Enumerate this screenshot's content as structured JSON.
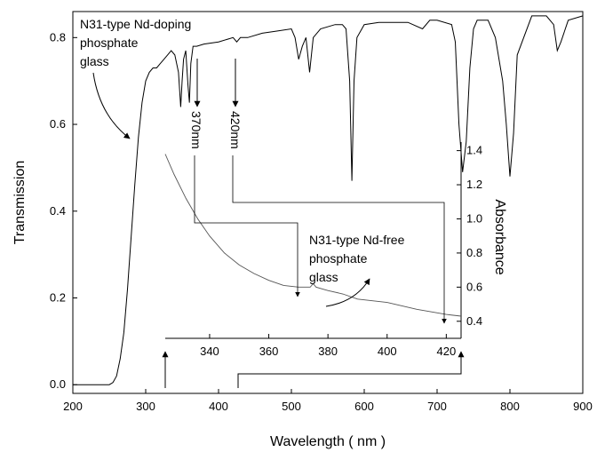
{
  "chart_data": [
    {
      "type": "line",
      "title": "",
      "xlabel": "Wavelength ( nm )",
      "ylabel": "Transmission",
      "xlim": [
        200,
        900
      ],
      "ylim": [
        -0.02,
        0.86
      ],
      "xticks": [
        "200",
        "300",
        "400",
        "500",
        "600",
        "700",
        "800",
        "900"
      ],
      "yticks": [
        "0.0",
        "0.2",
        "0.4",
        "0.6",
        "0.8"
      ],
      "series": [
        {
          "name": "N31-type Nd-doping phosphate glass",
          "x": [
            200,
            250,
            255,
            260,
            265,
            270,
            275,
            280,
            285,
            290,
            295,
            300,
            305,
            310,
            315,
            320,
            325,
            330,
            335,
            340,
            345,
            348,
            350,
            352,
            355,
            358,
            360,
            362,
            365,
            370,
            380,
            400,
            420,
            425,
            430,
            440,
            460,
            480,
            500,
            505,
            510,
            515,
            520,
            525,
            530,
            540,
            560,
            570,
            575,
            580,
            583,
            586,
            590,
            600,
            620,
            640,
            660,
            680,
            690,
            700,
            720,
            725,
            730,
            735,
            740,
            745,
            750,
            755,
            760,
            770,
            780,
            790,
            795,
            800,
            805,
            810,
            830,
            850,
            860,
            865,
            870,
            880,
            900
          ],
          "y": [
            0.0,
            0.0,
            0.005,
            0.02,
            0.06,
            0.12,
            0.22,
            0.34,
            0.46,
            0.57,
            0.65,
            0.7,
            0.72,
            0.73,
            0.73,
            0.74,
            0.75,
            0.76,
            0.77,
            0.76,
            0.72,
            0.64,
            0.7,
            0.75,
            0.77,
            0.69,
            0.65,
            0.74,
            0.78,
            0.78,
            0.785,
            0.79,
            0.8,
            0.79,
            0.8,
            0.8,
            0.81,
            0.815,
            0.82,
            0.8,
            0.75,
            0.78,
            0.8,
            0.72,
            0.8,
            0.82,
            0.83,
            0.83,
            0.82,
            0.7,
            0.47,
            0.7,
            0.8,
            0.83,
            0.835,
            0.835,
            0.835,
            0.82,
            0.84,
            0.84,
            0.83,
            0.79,
            0.6,
            0.49,
            0.56,
            0.73,
            0.82,
            0.84,
            0.84,
            0.84,
            0.8,
            0.7,
            0.6,
            0.48,
            0.58,
            0.76,
            0.85,
            0.85,
            0.83,
            0.77,
            0.79,
            0.84,
            0.85
          ]
        }
      ]
    },
    {
      "type": "line",
      "title": "",
      "xlabel": "",
      "ylabel": "Absorbance",
      "xlim": [
        325,
        425
      ],
      "ylim": [
        0.3,
        1.45
      ],
      "xticks": [
        "340",
        "360",
        "380",
        "400",
        "420"
      ],
      "yticks": [
        "0.4",
        "0.6",
        "0.8",
        "1.0",
        "1.2",
        "1.4"
      ],
      "series": [
        {
          "name": "N31-type Nd-free phosphate glass",
          "x": [
            325,
            328,
            332,
            336,
            340,
            345,
            350,
            355,
            360,
            365,
            370,
            374,
            375,
            376,
            378,
            380,
            385,
            390,
            400,
            410,
            420,
            425
          ],
          "y": [
            1.38,
            1.26,
            1.12,
            1.0,
            0.9,
            0.8,
            0.73,
            0.68,
            0.64,
            0.61,
            0.6,
            0.6,
            0.62,
            0.6,
            0.59,
            0.58,
            0.56,
            0.53,
            0.51,
            0.47,
            0.44,
            0.43
          ]
        }
      ]
    }
  ],
  "annotations": {
    "doped_label": [
      "N31-type Nd-doping",
      "phosphate",
      "glass"
    ],
    "free_label": [
      "N31-type Nd-free",
      "phosphate",
      "glass"
    ],
    "marker_370": "370nm",
    "marker_420": "420nm"
  }
}
